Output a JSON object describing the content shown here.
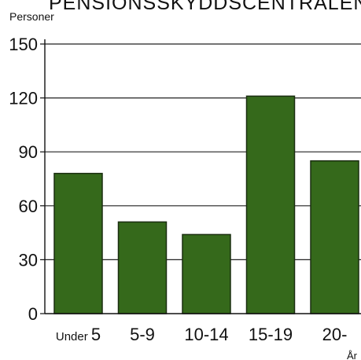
{
  "chart_data": {
    "type": "bar",
    "title": "PENSIONSSKYDDSCENTRALEN",
    "ylabel": "Personer",
    "xlabel": "År",
    "categories": [
      "Under 5",
      "5-9",
      "10-14",
      "15-19",
      "20-"
    ],
    "category_labels": [
      {
        "prefix": "Under",
        "main": "5"
      },
      {
        "prefix": "",
        "main": "5-9"
      },
      {
        "prefix": "",
        "main": "10-14"
      },
      {
        "prefix": "",
        "main": "15-19"
      },
      {
        "prefix": "",
        "main": "20-"
      }
    ],
    "values": [
      78,
      51,
      44,
      121,
      85
    ],
    "ylim": [
      0,
      150
    ],
    "yticks": [
      0,
      30,
      60,
      90,
      120,
      150
    ],
    "grid": true,
    "colors": {
      "bar": "#35691b",
      "bar_edge": "#1a2e10",
      "grid": "#222222",
      "axis": "#111111"
    }
  }
}
